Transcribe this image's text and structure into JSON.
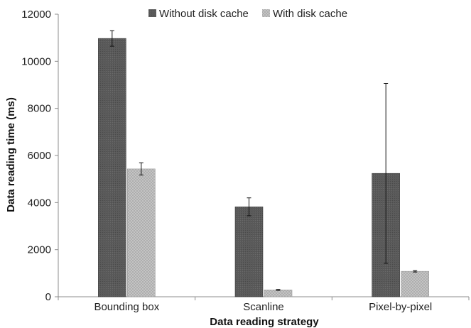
{
  "chart_data": {
    "type": "bar",
    "categories": [
      "Bounding box",
      "Scanline",
      "Pixel-by-pixel"
    ],
    "series": [
      {
        "name": "Without disk cache",
        "color": "#595959",
        "pattern": "dark-speckle",
        "values": [
          10970,
          3820,
          5240
        ],
        "errors": [
          330,
          380,
          3820
        ]
      },
      {
        "name": "With disk cache",
        "color": "#bfbfbf",
        "pattern": "light-checker",
        "values": [
          5430,
          290,
          1080
        ],
        "errors": [
          260,
          20,
          30
        ]
      }
    ],
    "title": "",
    "xlabel": "Data reading strategy",
    "ylabel": "Data reading time (ms)",
    "ylim": [
      0,
      12000
    ],
    "yticks": [
      0,
      2000,
      4000,
      6000,
      8000,
      10000,
      12000
    ],
    "grid": false,
    "legend": "top-center"
  }
}
